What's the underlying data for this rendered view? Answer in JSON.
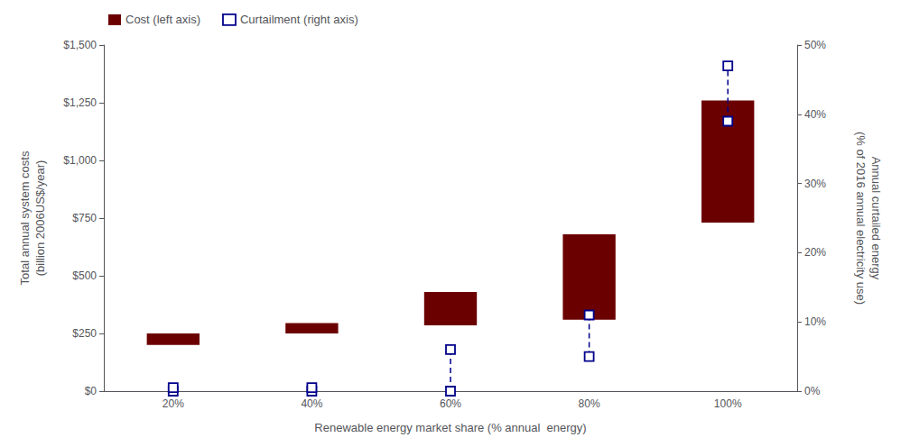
{
  "chart_data": {
    "type": "bar",
    "categories": [
      "20%",
      "40%",
      "60%",
      "80%",
      "100%"
    ],
    "xlabel": "Renewable energy market share (% annual  energy)",
    "ylabel": "Total annual system costs\n(billion 2006US$/year)",
    "y2label": "Annual curtailed energy\n(% of 2016 annual electricity use)",
    "ylim": [
      0,
      1500
    ],
    "yticks": [
      {
        "value": 0,
        "label": "$0"
      },
      {
        "value": 250,
        "label": "$250"
      },
      {
        "value": 500,
        "label": "$500"
      },
      {
        "value": 750,
        "label": "$750"
      },
      {
        "value": 1000,
        "label": "$1,000"
      },
      {
        "value": 1250,
        "label": "$1,250"
      },
      {
        "value": 1500,
        "label": "$1,500"
      }
    ],
    "y2lim": [
      0,
      50
    ],
    "y2ticks": [
      {
        "value": 0,
        "label": "0%"
      },
      {
        "value": 10,
        "label": "10%"
      },
      {
        "value": 20,
        "label": "20%"
      },
      {
        "value": 30,
        "label": "30%"
      },
      {
        "value": 40,
        "label": "40%"
      },
      {
        "value": 50,
        "label": "50%"
      }
    ],
    "grid": false,
    "legend": "upper left",
    "series": [
      {
        "name": "Cost (left axis)",
        "type": "floating_bar",
        "color": "#6B0000",
        "bottoms": [
          200,
          250,
          285,
          310,
          730
        ],
        "tops": [
          250,
          295,
          430,
          680,
          1260
        ]
      },
      {
        "name": "Curtailment (right axis)",
        "type": "range",
        "axis": "y2",
        "color": "#00008B",
        "line_style": "dashed",
        "marker": "square",
        "low": [
          0.0,
          0.0,
          0.0,
          5.0,
          39.0
        ],
        "high": [
          0.5,
          0.5,
          6.0,
          11.0,
          47.0
        ]
      }
    ]
  }
}
